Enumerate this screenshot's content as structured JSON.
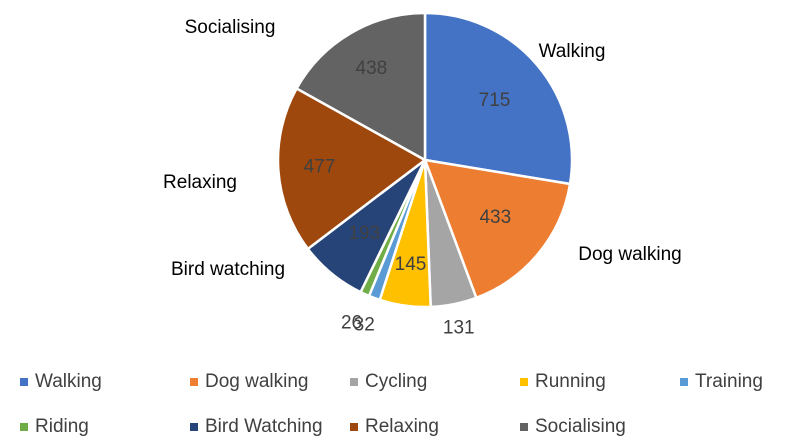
{
  "chart_data": {
    "type": "pie",
    "categories": [
      "Walking",
      "Dog walking",
      "Cycling",
      "Running",
      "Training",
      "Riding",
      "Bird Watching",
      "Relaxing",
      "Socialising"
    ],
    "values": [
      715,
      433,
      131,
      145,
      32,
      26,
      193,
      477,
      438
    ],
    "colors": [
      "#4472c4",
      "#ed7d31",
      "#a5a5a5",
      "#ffc000",
      "#5b9bd5",
      "#70ad47",
      "#264478",
      "#9e480e",
      "#636363"
    ],
    "slice_labels": [
      "Walking",
      "Dog walking",
      null,
      null,
      null,
      null,
      "Bird watching",
      "Relaxing",
      "Socialising"
    ],
    "legend": "bottom"
  }
}
